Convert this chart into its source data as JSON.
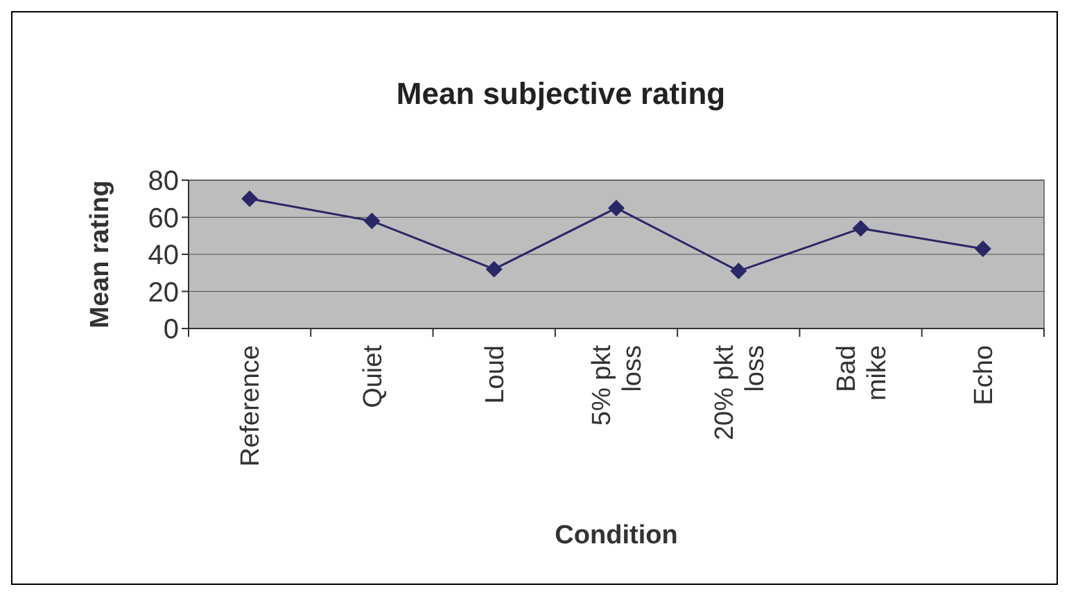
{
  "chart_data": {
    "type": "line",
    "title": "Mean subjective rating",
    "xlabel": "Condition",
    "ylabel": "Mean rating",
    "categories": [
      "Reference",
      "Quiet",
      "Loud",
      "5% pkt loss",
      "20% pkt loss",
      "Bad mike",
      "Echo"
    ],
    "series": [
      {
        "color": "#2a2766",
        "values": [
          70,
          58,
          32,
          65,
          31,
          54,
          43
        ]
      }
    ],
    "ylim": [
      0,
      80
    ],
    "yticks": [
      0,
      20,
      40,
      60,
      80
    ],
    "grid": "y",
    "marker": "diamond",
    "line_style": "solid"
  }
}
